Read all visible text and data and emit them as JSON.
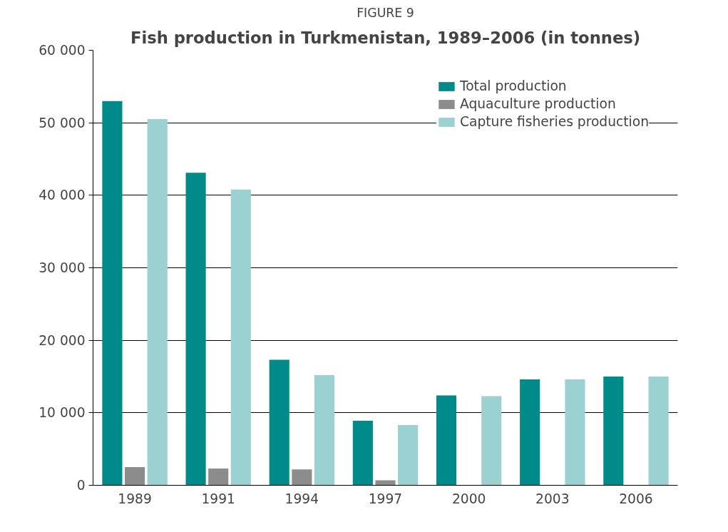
{
  "chart_data": {
    "type": "bar",
    "subtitle": "FIGURE 9",
    "title": "Fish production in Turkmenistan, 1989–2006 (in tonnes)",
    "categories": [
      "1989",
      "1991",
      "1994",
      "1997",
      "2000",
      "2003",
      "2006"
    ],
    "series": [
      {
        "name": "Total production",
        "color": "#008a8a",
        "values": [
          53000,
          43100,
          17300,
          8900,
          12400,
          14600,
          15000
        ]
      },
      {
        "name": "Aquaculture production",
        "color": "#8c8c8c",
        "values": [
          2500,
          2300,
          2200,
          700,
          0,
          0,
          0
        ]
      },
      {
        "name": "Capture fisheries production",
        "color": "#9bd1d0",
        "values": [
          50500,
          40800,
          15200,
          8300,
          12300,
          14600,
          15000
        ]
      }
    ],
    "ylim": [
      0,
      60000
    ],
    "yticks": [
      {
        "value": 0,
        "label": "0"
      },
      {
        "value": 10000,
        "label": "10 000"
      },
      {
        "value": 20000,
        "label": "20 000"
      },
      {
        "value": 30000,
        "label": "30 000"
      },
      {
        "value": 40000,
        "label": "40 000"
      },
      {
        "value": 50000,
        "label": "50 000"
      },
      {
        "value": 60000,
        "label": "60 000"
      }
    ],
    "grid": "y",
    "legend": "top right"
  }
}
